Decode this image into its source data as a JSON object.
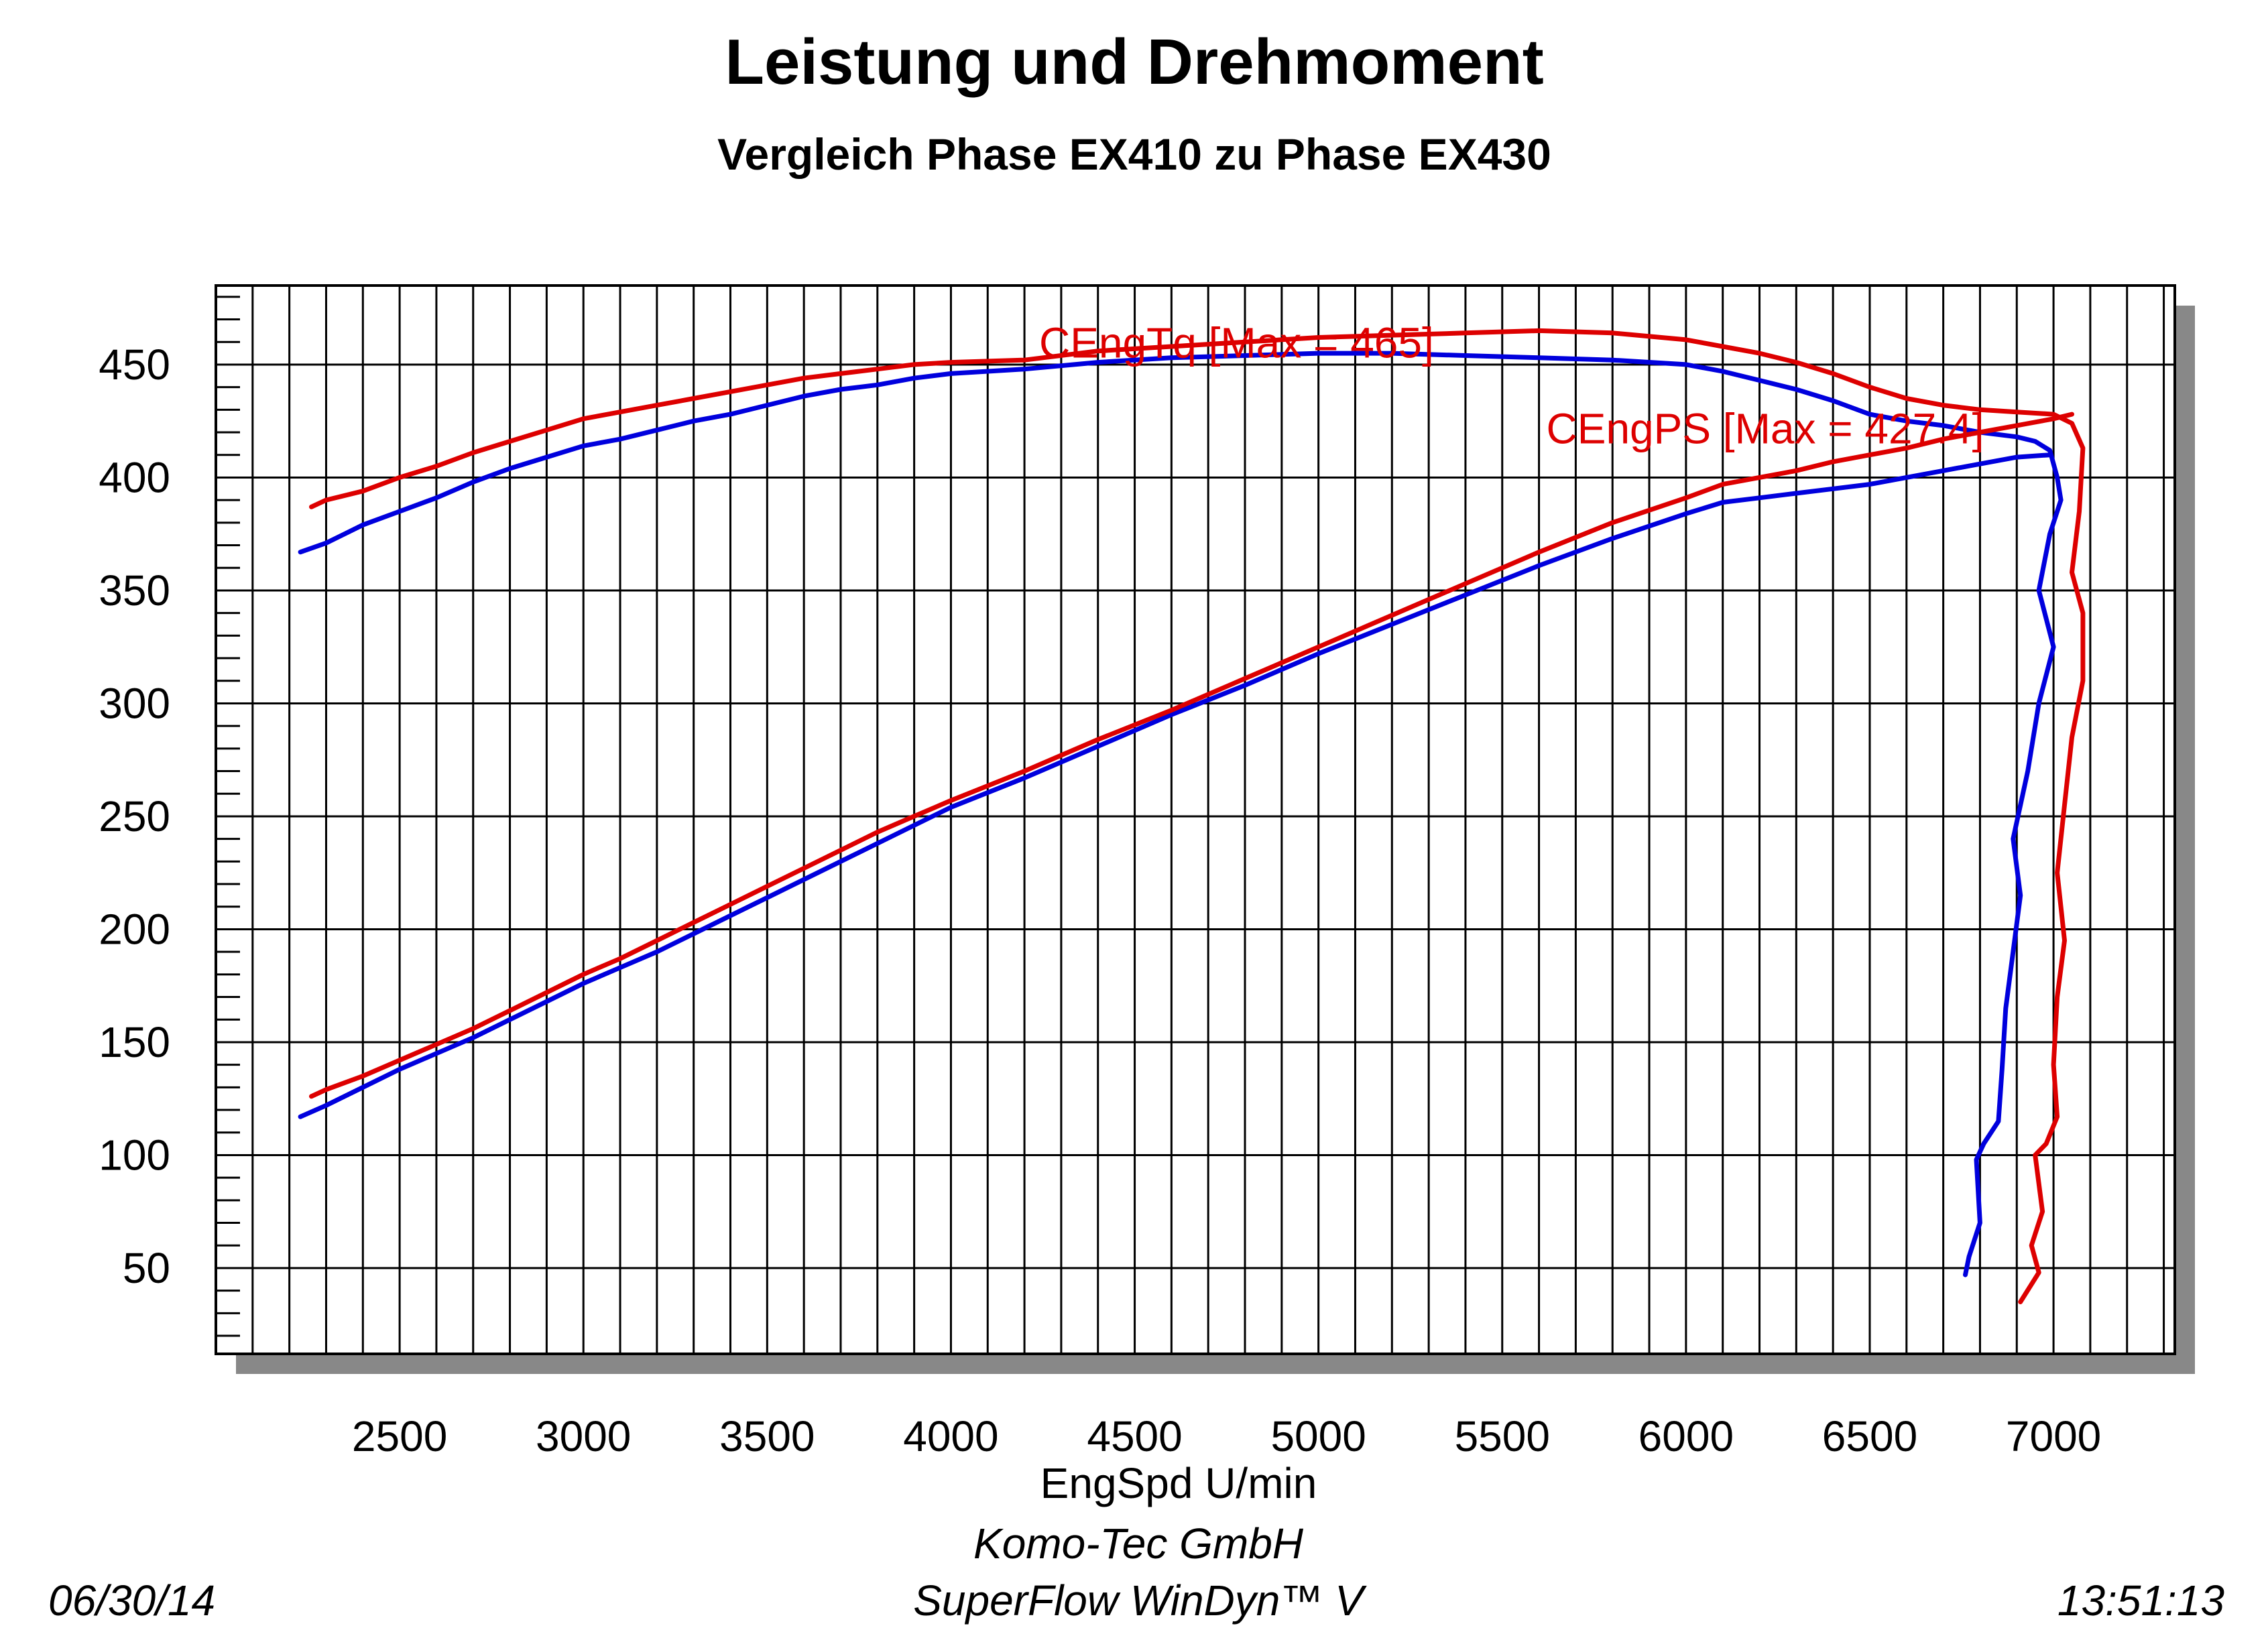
{
  "chart_data": {
    "type": "line",
    "title": "Leistung und Drehmoment",
    "subtitle": "Vergleich Phase EX410 zu Phase EX430",
    "xlabel": "EngSpd U/min",
    "ylabel": "",
    "xlim": [
      2000,
      7330
    ],
    "ylim": [
      12,
      485
    ],
    "x_ticks": [
      "2500",
      "3000",
      "3500",
      "4000",
      "4500",
      "5000",
      "5500",
      "6000",
      "6500",
      "7000"
    ],
    "y_ticks": [
      "50",
      "100",
      "150",
      "200",
      "250",
      "300",
      "350",
      "400",
      "450"
    ],
    "grid": true,
    "colors": {
      "blue": "#0000dd",
      "red": "#dd0000"
    },
    "annotations": [
      {
        "text": "CEngTq [Max = 465]",
        "x": 4240,
        "y": 465,
        "color": "#dd0000"
      },
      {
        "text": "CEngPS [Max = 427.4]",
        "x": 5620,
        "y": 427,
        "color": "#dd0000"
      }
    ],
    "series": [
      {
        "name": "",
        "color": "#0000dd",
        "points": [
          [
            2230,
            367
          ],
          [
            2300,
            371
          ],
          [
            2400,
            379
          ],
          [
            2500,
            385
          ],
          [
            2600,
            391
          ],
          [
            2700,
            398
          ],
          [
            2800,
            404
          ],
          [
            2900,
            409
          ],
          [
            3000,
            414
          ],
          [
            3100,
            417
          ],
          [
            3200,
            421
          ],
          [
            3300,
            425
          ],
          [
            3400,
            428
          ],
          [
            3500,
            432
          ],
          [
            3600,
            436
          ],
          [
            3700,
            439
          ],
          [
            3800,
            441
          ],
          [
            3900,
            444
          ],
          [
            4000,
            446
          ],
          [
            4200,
            448
          ],
          [
            4400,
            451
          ],
          [
            4600,
            453
          ],
          [
            4800,
            454
          ],
          [
            5000,
            455
          ],
          [
            5200,
            455
          ],
          [
            5400,
            454
          ],
          [
            5600,
            453
          ],
          [
            5800,
            452
          ],
          [
            6000,
            450
          ],
          [
            6100,
            447
          ],
          [
            6200,
            443
          ],
          [
            6300,
            439
          ],
          [
            6400,
            434
          ],
          [
            6500,
            428
          ],
          [
            6600,
            425
          ],
          [
            6700,
            423
          ],
          [
            6800,
            420
          ],
          [
            6900,
            418
          ],
          [
            6950,
            416
          ],
          [
            6990,
            412
          ],
          [
            7010,
            400
          ],
          [
            7020,
            390
          ],
          [
            6990,
            375
          ],
          [
            6960,
            350
          ],
          [
            7000,
            325
          ],
          [
            6960,
            300
          ],
          [
            6930,
            270
          ],
          [
            6890,
            240
          ],
          [
            6910,
            215
          ],
          [
            6890,
            190
          ],
          [
            6870,
            165
          ],
          [
            6860,
            138
          ],
          [
            6850,
            115
          ],
          [
            6810,
            105
          ],
          [
            6790,
            98
          ],
          [
            6800,
            70
          ],
          [
            6770,
            55
          ],
          [
            6760,
            47
          ]
        ]
      },
      {
        "name": "",
        "color": "#dd0000",
        "points": [
          [
            2260,
            387
          ],
          [
            2300,
            390
          ],
          [
            2400,
            394
          ],
          [
            2500,
            400
          ],
          [
            2600,
            405
          ],
          [
            2700,
            411
          ],
          [
            2800,
            416
          ],
          [
            2900,
            421
          ],
          [
            3000,
            426
          ],
          [
            3100,
            429
          ],
          [
            3200,
            432
          ],
          [
            3300,
            435
          ],
          [
            3400,
            438
          ],
          [
            3500,
            441
          ],
          [
            3600,
            444
          ],
          [
            3700,
            446
          ],
          [
            3800,
            448
          ],
          [
            3900,
            450
          ],
          [
            4000,
            451
          ],
          [
            4200,
            452
          ],
          [
            4400,
            456
          ],
          [
            4600,
            458
          ],
          [
            4800,
            460
          ],
          [
            5000,
            462
          ],
          [
            5200,
            463
          ],
          [
            5400,
            464
          ],
          [
            5600,
            465
          ],
          [
            5800,
            464
          ],
          [
            6000,
            461
          ],
          [
            6100,
            458
          ],
          [
            6200,
            455
          ],
          [
            6300,
            451
          ],
          [
            6400,
            446
          ],
          [
            6500,
            440
          ],
          [
            6600,
            435
          ],
          [
            6700,
            432
          ],
          [
            6800,
            430
          ],
          [
            6900,
            429
          ],
          [
            7000,
            428
          ],
          [
            7050,
            424
          ],
          [
            7080,
            413
          ],
          [
            7070,
            385
          ],
          [
            7050,
            358
          ],
          [
            7080,
            340
          ],
          [
            7080,
            310
          ],
          [
            7050,
            285
          ],
          [
            7030,
            255
          ],
          [
            7010,
            225
          ],
          [
            7030,
            195
          ],
          [
            7010,
            170
          ],
          [
            7000,
            140
          ],
          [
            7010,
            117
          ],
          [
            6980,
            105
          ],
          [
            6950,
            100
          ],
          [
            6970,
            75
          ],
          [
            6940,
            60
          ],
          [
            6960,
            48
          ],
          [
            6910,
            35
          ]
        ]
      },
      {
        "name": "",
        "color": "#0000dd",
        "points": [
          [
            2230,
            117
          ],
          [
            2300,
            122
          ],
          [
            2400,
            130
          ],
          [
            2500,
            138
          ],
          [
            2600,
            145
          ],
          [
            2700,
            152
          ],
          [
            2800,
            160
          ],
          [
            2900,
            168
          ],
          [
            3000,
            176
          ],
          [
            3100,
            183
          ],
          [
            3200,
            190
          ],
          [
            3300,
            198
          ],
          [
            3400,
            206
          ],
          [
            3500,
            214
          ],
          [
            3600,
            222
          ],
          [
            3700,
            230
          ],
          [
            3800,
            238
          ],
          [
            3900,
            246
          ],
          [
            4000,
            254
          ],
          [
            4200,
            267
          ],
          [
            4400,
            281
          ],
          [
            4600,
            295
          ],
          [
            4800,
            308
          ],
          [
            5000,
            322
          ],
          [
            5200,
            335
          ],
          [
            5400,
            348
          ],
          [
            5600,
            361
          ],
          [
            5800,
            373
          ],
          [
            6000,
            384
          ],
          [
            6100,
            389
          ],
          [
            6200,
            391
          ],
          [
            6300,
            393
          ],
          [
            6400,
            395
          ],
          [
            6500,
            397
          ],
          [
            6600,
            400
          ],
          [
            6700,
            403
          ],
          [
            6800,
            406
          ],
          [
            6900,
            409
          ],
          [
            6990,
            410
          ]
        ]
      },
      {
        "name": "",
        "color": "#dd0000",
        "points": [
          [
            2260,
            126
          ],
          [
            2300,
            129
          ],
          [
            2400,
            135
          ],
          [
            2500,
            142
          ],
          [
            2600,
            149
          ],
          [
            2700,
            156
          ],
          [
            2800,
            164
          ],
          [
            2900,
            172
          ],
          [
            3000,
            180
          ],
          [
            3100,
            187
          ],
          [
            3200,
            195
          ],
          [
            3300,
            203
          ],
          [
            3400,
            211
          ],
          [
            3500,
            219
          ],
          [
            3600,
            227
          ],
          [
            3700,
            235
          ],
          [
            3800,
            243
          ],
          [
            3900,
            250
          ],
          [
            4000,
            257
          ],
          [
            4200,
            270
          ],
          [
            4400,
            284
          ],
          [
            4600,
            297
          ],
          [
            4800,
            311
          ],
          [
            5000,
            325
          ],
          [
            5200,
            339
          ],
          [
            5400,
            353
          ],
          [
            5600,
            367
          ],
          [
            5800,
            380
          ],
          [
            6000,
            391
          ],
          [
            6100,
            397
          ],
          [
            6200,
            400
          ],
          [
            6300,
            403
          ],
          [
            6400,
            407
          ],
          [
            6500,
            410
          ],
          [
            6600,
            413
          ],
          [
            6700,
            417
          ],
          [
            6800,
            420
          ],
          [
            6900,
            423
          ],
          [
            7000,
            426
          ],
          [
            7050,
            428
          ]
        ]
      }
    ]
  },
  "footer": {
    "company": "Komo-Tec GmbH",
    "software": "SuperFlow WinDyn™ V",
    "date": "06/30/14",
    "time": "13:51:13"
  }
}
